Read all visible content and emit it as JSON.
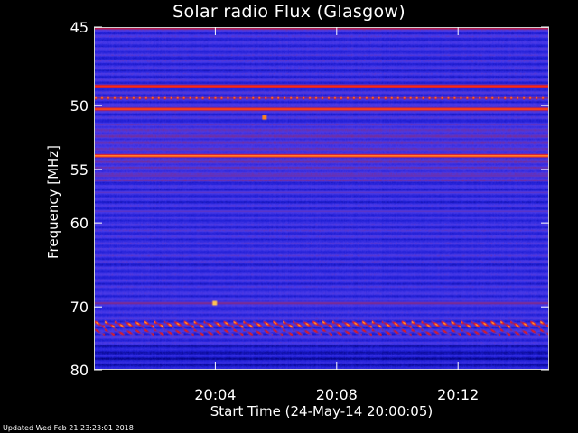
{
  "chart_data": {
    "type": "heatmap",
    "title": "Solar radio Flux (Glasgow)",
    "xlabel": "Start Time (24-May-14 20:00:05)",
    "ylabel": "Frequency [MHz]",
    "x_unit": "minutes after 20:00:05",
    "xlim": [
      0,
      15
    ],
    "ylim": [
      45,
      80
    ],
    "y_scale": "reciprocal",
    "y_direction": "increasing-downward",
    "x_ticks": [
      {
        "value": 4,
        "label": "20:04"
      },
      {
        "value": 8,
        "label": "20:08"
      },
      {
        "value": 12,
        "label": "20:12"
      }
    ],
    "y_ticks": [
      {
        "value": 45,
        "label": "45"
      },
      {
        "value": 50,
        "label": "50"
      },
      {
        "value": 55,
        "label": "55"
      },
      {
        "value": 60,
        "label": "60"
      },
      {
        "value": 70,
        "label": "70"
      },
      {
        "value": 80,
        "label": "80"
      }
    ],
    "colormap": [
      "#00007a",
      "#2020d8",
      "#4a3ae8",
      "#7a2a90",
      "#c01838",
      "#ff2010",
      "#ff8a20",
      "#ffe070"
    ],
    "bands": [
      {
        "freq": 45.0,
        "level": 0.55
      },
      {
        "freq": 48.6,
        "level": 0.75
      },
      {
        "freq": 49.4,
        "level": 0.85,
        "pattern": "spikes"
      },
      {
        "freq": 50.2,
        "level": 0.8
      },
      {
        "freq": 53.8,
        "level": 0.9
      },
      {
        "freq": 55.5,
        "level": 0.38
      },
      {
        "freq": 57.0,
        "level": 0.35
      },
      {
        "freq": 58.8,
        "level": 0.35
      },
      {
        "freq": 69.5,
        "level": 0.45
      },
      {
        "freq": 72.6,
        "level": 0.95,
        "pattern": "drift"
      },
      {
        "freq": 73.8,
        "level": 0.7,
        "pattern": "drift"
      }
    ],
    "point_sources": [
      {
        "time": 5.6,
        "freq": 50.8,
        "level": 0.85
      },
      {
        "time": 3.95,
        "freq": 69.5,
        "level": 0.95
      }
    ]
  },
  "footer": {
    "updated": "Updated Wed Feb 21 23:23:01 2018"
  }
}
